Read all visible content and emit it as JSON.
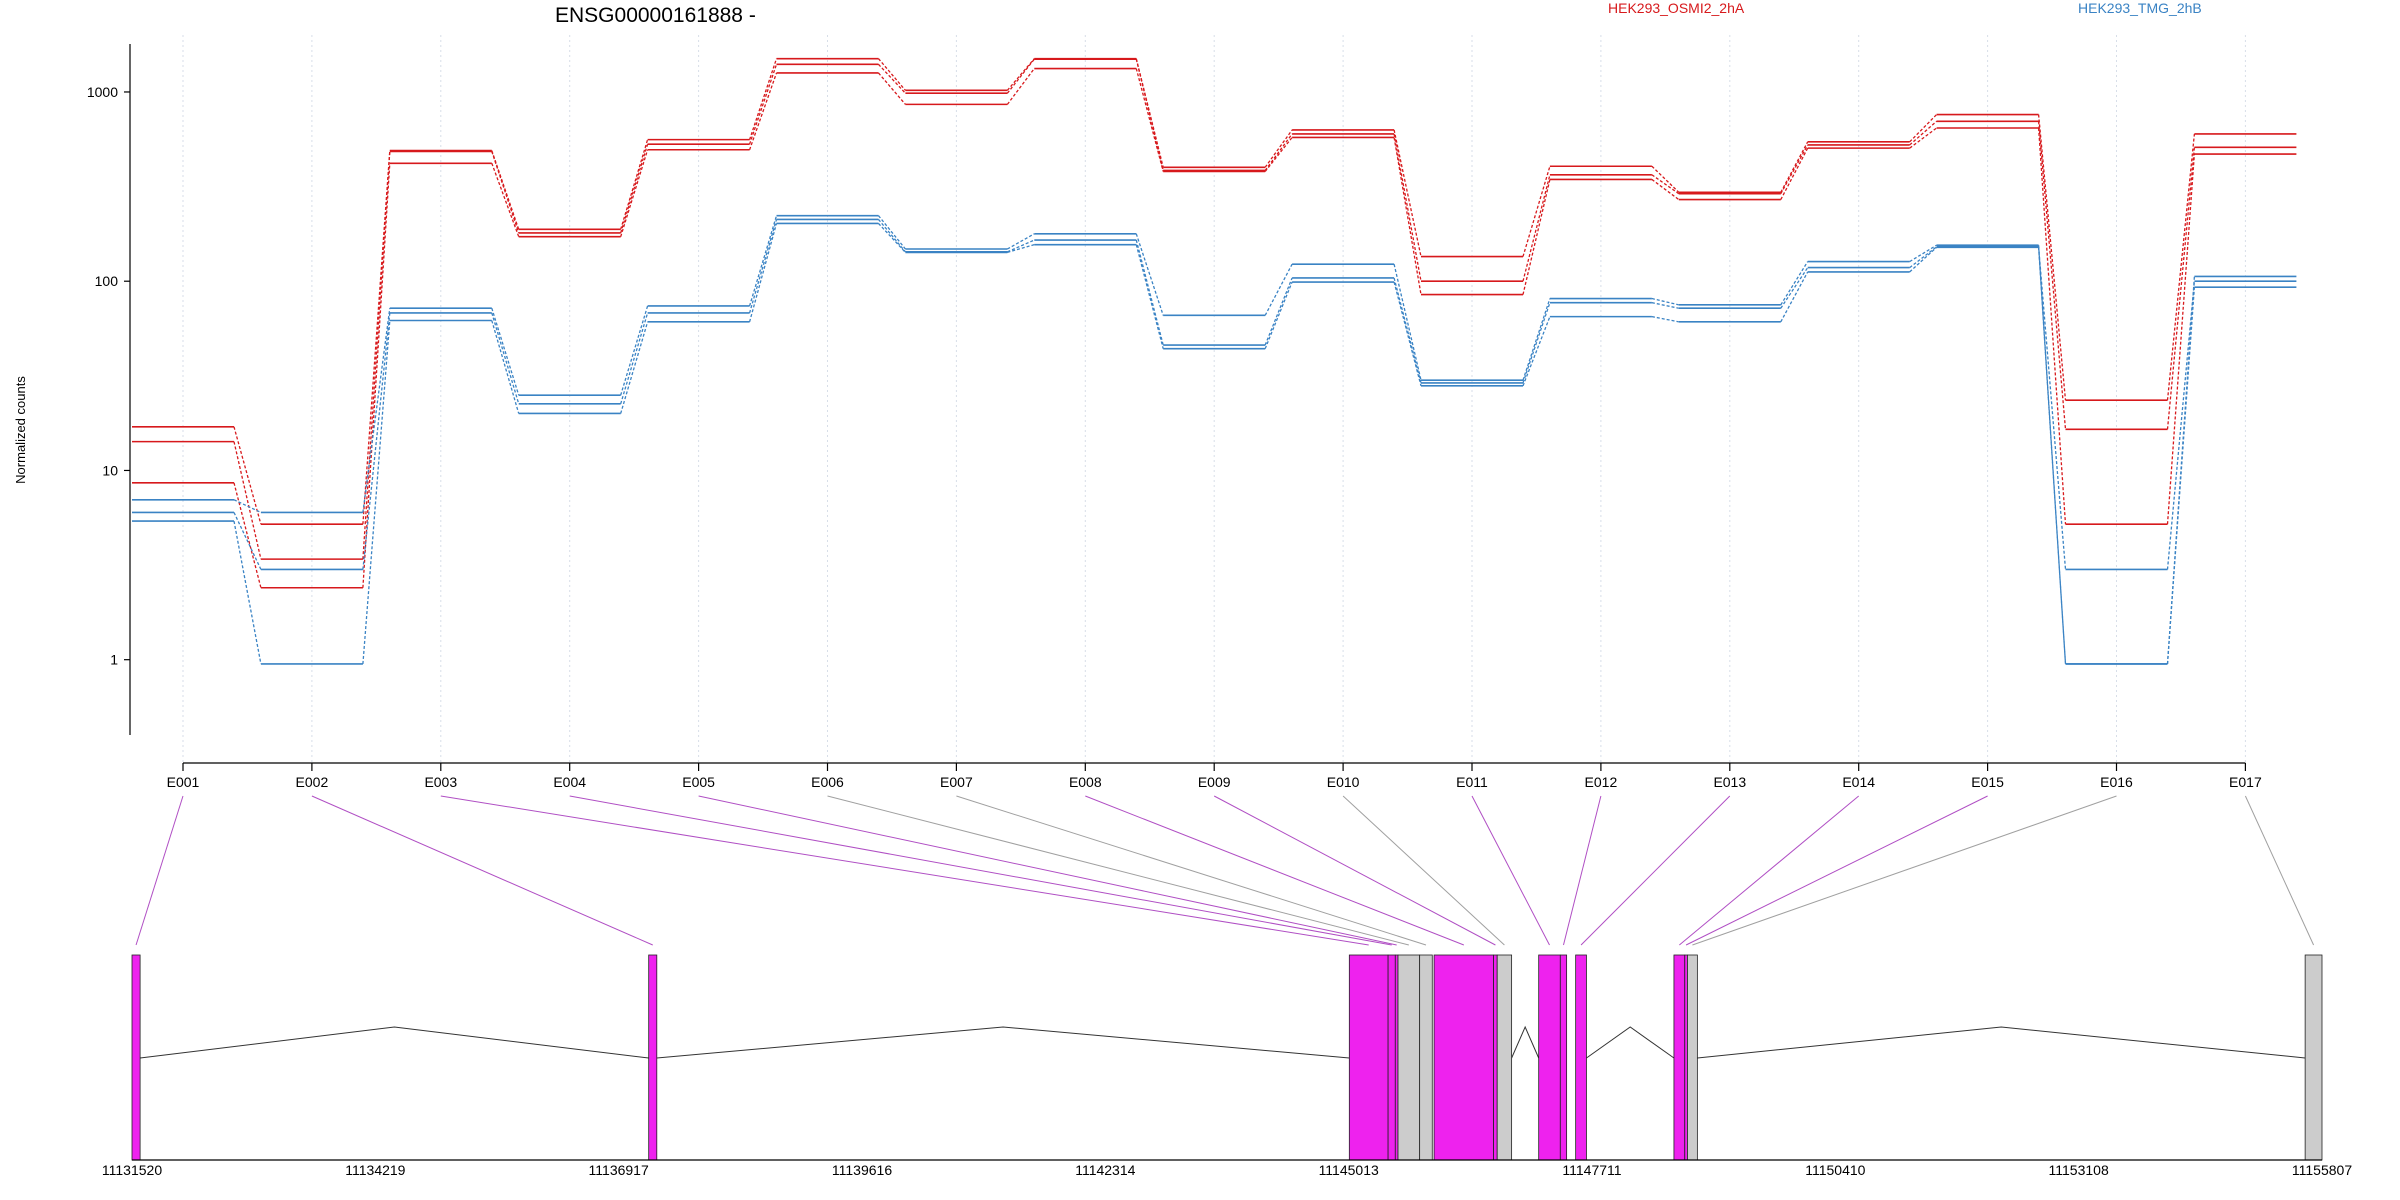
{
  "chart_data": {
    "type": "line",
    "title": "ENSG00000161888 -",
    "ylabel": "Normalized counts",
    "xlabel": "",
    "y_scale": "log",
    "ylim": [
      0.4,
      2000
    ],
    "y_ticks": [
      1,
      10,
      100,
      1000
    ],
    "y_tick_labels": [
      "1",
      "10",
      "100",
      "1000"
    ],
    "grid": "vertical dotted lines at each exon",
    "legend_position": "top-right",
    "categories": [
      "E001",
      "E002",
      "E003",
      "E004",
      "E005",
      "E006",
      "E007",
      "E008",
      "E009",
      "E010",
      "E011",
      "E012",
      "E013",
      "E014",
      "E015",
      "E016",
      "E017"
    ],
    "groups": [
      {
        "name": "HEK293_OSMI2_2hA",
        "color": "#d7191c",
        "series": [
          {
            "values": [
              17,
              5.2,
              490,
              188,
              560,
              1500,
              1020,
              1500,
              400,
              630,
              135,
              405,
              295,
              545,
              760,
              23.5,
              600
            ]
          },
          {
            "values": [
              14.2,
              3.4,
              485,
              180,
              530,
              1400,
              985,
              1490,
              385,
              600,
              100,
              365,
              290,
              525,
              700,
              16.5,
              510
            ]
          },
          {
            "values": [
              8.6,
              2.4,
              420,
              172,
              495,
              1260,
              860,
              1330,
              380,
              575,
              85,
              345,
              270,
              505,
              645,
              5.2,
              470
            ]
          }
        ]
      },
      {
        "name": "HEK293_TMG_2hB",
        "color": "#3a83c4",
        "series": [
          {
            "values": [
              7.0,
              6.0,
              72,
              25,
              74,
              222,
              148,
              178,
              66,
              123,
              30,
              81,
              75,
              127,
              155,
              0.95,
              106
            ]
          },
          {
            "values": [
              6.0,
              3.0,
              68,
              22.5,
              68,
              212,
              143,
              165,
              46,
              104,
              29,
              77,
              72,
              118,
              152,
              3.0,
              100
            ]
          },
          {
            "values": [
              5.4,
              0.95,
              62,
              20,
              61,
              202,
              142,
              156,
              44,
              99,
              28,
              65,
              61,
              112,
              151,
              0.95,
              93
            ]
          }
        ]
      }
    ],
    "gene_model": {
      "coordinate_ticks": [
        "11131520",
        "11134219",
        "11136917",
        "11139616",
        "11142314",
        "11145013",
        "11147711",
        "11150410",
        "11153108",
        "11155807"
      ],
      "range": [
        11131520,
        11155807
      ],
      "exons": [
        {
          "label": "E001",
          "start": 11131520,
          "end": 11131610,
          "tested": true
        },
        {
          "label": "E002",
          "start": 11137250,
          "end": 11137340,
          "tested": true
        },
        {
          "label": "E003",
          "start": 11145020,
          "end": 11145450,
          "tested": true
        },
        {
          "label": "E004",
          "start": 11145450,
          "end": 11145530,
          "tested": true
        },
        {
          "label": "E005",
          "start": 11145530,
          "end": 11145560,
          "tested": true
        },
        {
          "label": "E006",
          "start": 11145560,
          "end": 11145800,
          "tested": false
        },
        {
          "label": "E007",
          "start": 11145800,
          "end": 11145940,
          "tested": false
        },
        {
          "label": "E008",
          "start": 11145960,
          "end": 11146620,
          "tested": true
        },
        {
          "label": "E009",
          "start": 11146620,
          "end": 11146660,
          "tested": true
        },
        {
          "label": "E010",
          "start": 11146660,
          "end": 11146820,
          "tested": false
        },
        {
          "label": "E011",
          "start": 11147120,
          "end": 11147360,
          "tested": true
        },
        {
          "label": "E012",
          "start": 11147360,
          "end": 11147430,
          "tested": true
        },
        {
          "label": "E013",
          "start": 11147530,
          "end": 11147650,
          "tested": true
        },
        {
          "label": "E014",
          "start": 11148620,
          "end": 11148740,
          "tested": true
        },
        {
          "label": "E015",
          "start": 11148740,
          "end": 11148770,
          "tested": true
        },
        {
          "label": "E016",
          "start": 11148770,
          "end": 11148880,
          "tested": false
        },
        {
          "label": "E017",
          "start": 11155620,
          "end": 11155807,
          "tested": false
        }
      ],
      "introns": [
        [
          11131610,
          11137250
        ],
        [
          11137340,
          11145020
        ],
        [
          11146820,
          11147120
        ],
        [
          11147650,
          11148620
        ],
        [
          11148880,
          11155620
        ]
      ]
    }
  },
  "colors": {
    "tested_exon": "#ee22ee",
    "untested_exon": "#cccccc",
    "tested_link": "#b04fc4",
    "untested_link": "#a0a0a0",
    "grid": "#d7dee8"
  }
}
